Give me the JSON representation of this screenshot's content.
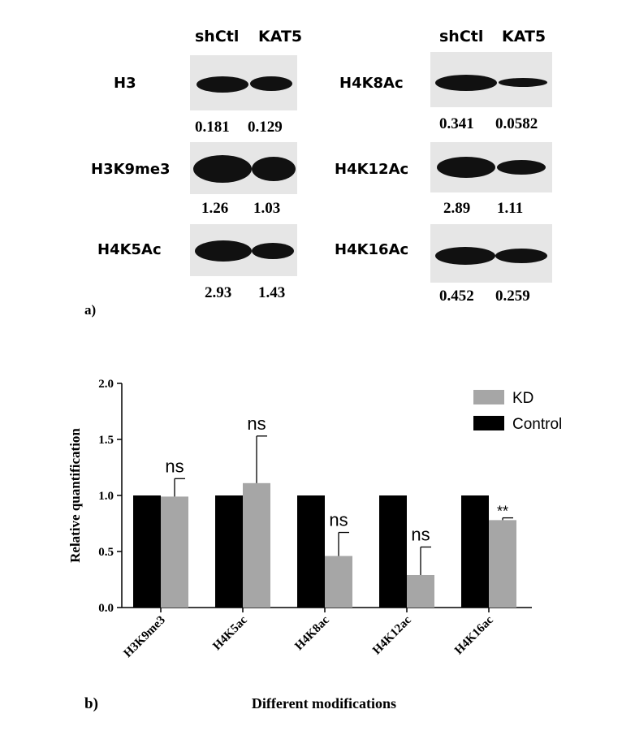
{
  "panel_a": {
    "letter": "a)",
    "left_header": [
      "shCtl",
      "KAT5"
    ],
    "right_header": [
      "shCtl",
      "KAT5"
    ],
    "blots": [
      {
        "label": "H3",
        "values": [
          "0.181",
          "0.129"
        ]
      },
      {
        "label": "H3K9me3",
        "values": [
          "1.26",
          "1.03"
        ]
      },
      {
        "label": "H4K5Ac",
        "values": [
          "2.93",
          "1.43"
        ]
      },
      {
        "label": "H4K8Ac",
        "values": [
          "0.341",
          "0.0582"
        ]
      },
      {
        "label": "H4K12Ac",
        "values": [
          "2.89",
          "1.11"
        ]
      },
      {
        "label": "H4K16Ac",
        "values": [
          "0.452",
          "0.259"
        ]
      }
    ]
  },
  "panel_b": {
    "letter": "b)"
  },
  "chart_data": {
    "type": "bar",
    "xlabel": "Different modifications",
    "ylabel": "Relative quantification",
    "ylim": [
      0,
      2.0
    ],
    "yticks": [
      "0.0",
      "0.5",
      "1.0",
      "1.5",
      "2.0"
    ],
    "categories": [
      "H3K9me3",
      "H4K5ac",
      "H4K8ac",
      "H4K12ac",
      "H4K16ac"
    ],
    "series": [
      {
        "name": "Control",
        "color": "#000000",
        "values": [
          1.0,
          1.0,
          1.0,
          1.0,
          1.0
        ]
      },
      {
        "name": "KD",
        "color": "#a6a6a6",
        "values": [
          0.99,
          1.11,
          0.46,
          0.29,
          0.78
        ],
        "error_upper": [
          1.15,
          1.53,
          0.67,
          0.54,
          0.8
        ]
      }
    ],
    "significance": [
      "ns",
      "ns",
      "ns",
      "ns",
      "**"
    ],
    "legend": {
      "position": "top-right",
      "order": [
        "KD",
        "Control"
      ]
    }
  }
}
